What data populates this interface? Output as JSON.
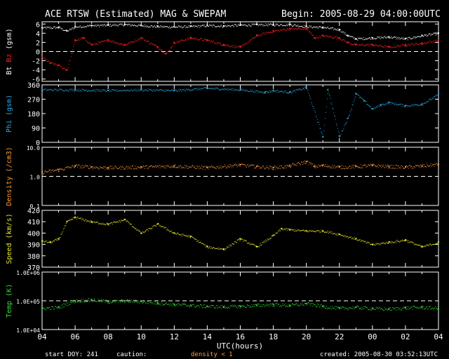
{
  "title": "ACE RTSW (Estimated) MAG & SWEPAM",
  "begin": "Begin: 2005-08-29 04:00:00UTC",
  "footer": {
    "start_doy": "start DOY: 241",
    "caution": "caution:",
    "density_note": "density < 1",
    "created": "created: 2005-08-30 03:52:13UTC"
  },
  "x_axis": {
    "label": "UTC(hours)",
    "ticks": [
      "04",
      "06",
      "08",
      "10",
      "12",
      "14",
      "16",
      "18",
      "20",
      "22",
      "00",
      "02",
      "04"
    ],
    "range_hours": [
      0,
      24
    ]
  },
  "colors": {
    "bt": "#ffffff",
    "bz": "#ff2020",
    "phi": "#29a8e0",
    "density": "#ff9a3c",
    "speed": "#e6e62e",
    "temp": "#38d838",
    "axis": "#ffffff",
    "background": "#000000"
  },
  "panels": [
    {
      "name": "mag",
      "ylabel_parts": [
        "Bt ",
        "Bz",
        " (gsm)"
      ],
      "ylabel_colors": [
        "#ffffff",
        "#ff2020",
        "#ffffff"
      ],
      "ticks": [
        "6",
        "4",
        "2",
        "0",
        "-2",
        "-4",
        "-6"
      ],
      "ylim": [
        -6.5,
        6.5
      ],
      "scale": "linear",
      "dashed_ref": 0
    },
    {
      "name": "phi",
      "ylabel": "Phi (gsm)",
      "ticks": [
        "360",
        "270",
        "180",
        "90",
        "0"
      ],
      "ylim": [
        0,
        360
      ],
      "scale": "linear"
    },
    {
      "name": "density",
      "ylabel": "Density (/cm3)",
      "ticks": [
        "10.0",
        "1.0",
        "0.1"
      ],
      "ylim": [
        0.1,
        10
      ],
      "scale": "log",
      "dashed_ref": 1.0
    },
    {
      "name": "speed",
      "ylabel": "Speed (km/s)",
      "ticks": [
        "420",
        "410",
        "400",
        "390",
        "380",
        "370"
      ],
      "ylim": [
        370,
        420
      ],
      "scale": "linear"
    },
    {
      "name": "temp",
      "ylabel": "Temp (K)",
      "ticks": [
        "1.0E+06",
        "1.0E+05",
        "1.0E+04"
      ],
      "ylim": [
        10000,
        1000000
      ],
      "scale": "log",
      "dashed_ref": 100000
    }
  ],
  "chart_data": [
    {
      "type": "scatter",
      "panel": "mag",
      "series": [
        {
          "name": "Bt",
          "color": "#ffffff",
          "x": [
            0,
            1,
            1.5,
            2,
            3,
            4,
            5,
            6,
            7,
            8,
            9,
            10,
            11,
            12,
            13,
            14,
            15,
            16,
            17,
            18,
            18.5,
            19,
            20,
            21,
            22,
            23,
            24
          ],
          "y": [
            5.2,
            5.3,
            4.5,
            5.4,
            5.7,
            5.8,
            5.9,
            5.7,
            5.5,
            5.4,
            5.5,
            5.7,
            5.6,
            5.8,
            5.9,
            5.9,
            5.9,
            5.5,
            5.3,
            4.8,
            3.5,
            2.8,
            3.0,
            3.2,
            2.8,
            3.5,
            4.0
          ]
        },
        {
          "name": "Bz",
          "color": "#ff2020",
          "x": [
            0,
            0.5,
            1,
            1.5,
            2,
            2.5,
            3,
            4,
            5,
            6,
            7,
            7.5,
            8,
            9,
            10,
            11,
            12,
            13,
            14,
            15,
            16,
            16.5,
            17,
            18,
            18.5,
            19,
            20,
            21,
            22,
            23,
            24
          ],
          "y": [
            -1.2,
            -2.5,
            -3.0,
            -4.0,
            2.5,
            3.0,
            1.5,
            2.5,
            1.5,
            3.0,
            1.0,
            -0.5,
            2.0,
            3.0,
            2.5,
            1.5,
            1.0,
            3.5,
            4.5,
            5.0,
            5.0,
            3.0,
            3.5,
            3.0,
            2.0,
            1.5,
            1.5,
            1.0,
            1.5,
            1.8,
            2.5
          ]
        }
      ]
    },
    {
      "type": "scatter",
      "panel": "phi",
      "series": [
        {
          "name": "Phi",
          "color": "#29a8e0",
          "x": [
            0,
            2,
            4,
            6,
            8,
            10,
            12,
            13.5,
            14,
            15,
            16,
            17,
            17.3,
            18,
            18.5,
            19,
            19.5,
            20,
            20.5,
            21,
            22,
            23,
            24
          ],
          "y": [
            330,
            330,
            325,
            330,
            325,
            340,
            330,
            315,
            325,
            315,
            345,
            35,
            330,
            40,
            150,
            305,
            260,
            210,
            235,
            250,
            230,
            240,
            300
          ]
        }
      ]
    },
    {
      "type": "scatter",
      "panel": "density",
      "series": [
        {
          "name": "Density",
          "color": "#ff9a3c",
          "x": [
            0,
            1,
            2,
            3,
            4,
            6,
            8,
            10,
            12,
            13,
            14,
            15,
            16,
            16.5,
            17,
            18,
            19,
            20,
            21,
            22,
            23,
            24
          ],
          "y": [
            1.4,
            1.7,
            2.3,
            2.1,
            2.0,
            2.1,
            2.3,
            2.0,
            2.5,
            2.2,
            2.0,
            2.3,
            3.2,
            2.2,
            2.4,
            2.1,
            2.2,
            2.4,
            2.2,
            2.1,
            2.3,
            2.6
          ]
        }
      ]
    },
    {
      "type": "scatter",
      "panel": "speed",
      "series": [
        {
          "name": "Speed",
          "color": "#e6e62e",
          "x": [
            0,
            0.5,
            1,
            1.5,
            2,
            3,
            4,
            5,
            6,
            7,
            8,
            9,
            10,
            11,
            12,
            13,
            14,
            14.5,
            15,
            16,
            17,
            18,
            19,
            20,
            21,
            22,
            23,
            24
          ],
          "y": [
            393,
            392,
            395,
            410,
            414,
            410,
            408,
            412,
            400,
            408,
            400,
            397,
            388,
            386,
            395,
            388,
            398,
            404,
            403,
            402,
            402,
            399,
            395,
            390,
            392,
            394,
            388,
            392
          ]
        }
      ]
    },
    {
      "type": "scatter",
      "panel": "temp",
      "series": [
        {
          "name": "Temp",
          "color": "#38d838",
          "x": [
            0,
            1,
            2,
            3,
            4,
            5,
            6,
            7,
            8,
            9,
            10,
            11,
            12,
            13,
            14,
            15,
            16,
            17,
            18,
            19,
            20,
            21,
            22,
            23,
            24
          ],
          "y": [
            55000,
            60000,
            100000,
            110000,
            95000,
            100000,
            95000,
            85000,
            75000,
            70000,
            65000,
            62000,
            65000,
            70000,
            75000,
            70000,
            80000,
            65000,
            55000,
            60000,
            55000,
            52000,
            58000,
            60000,
            55000
          ]
        }
      ]
    }
  ]
}
